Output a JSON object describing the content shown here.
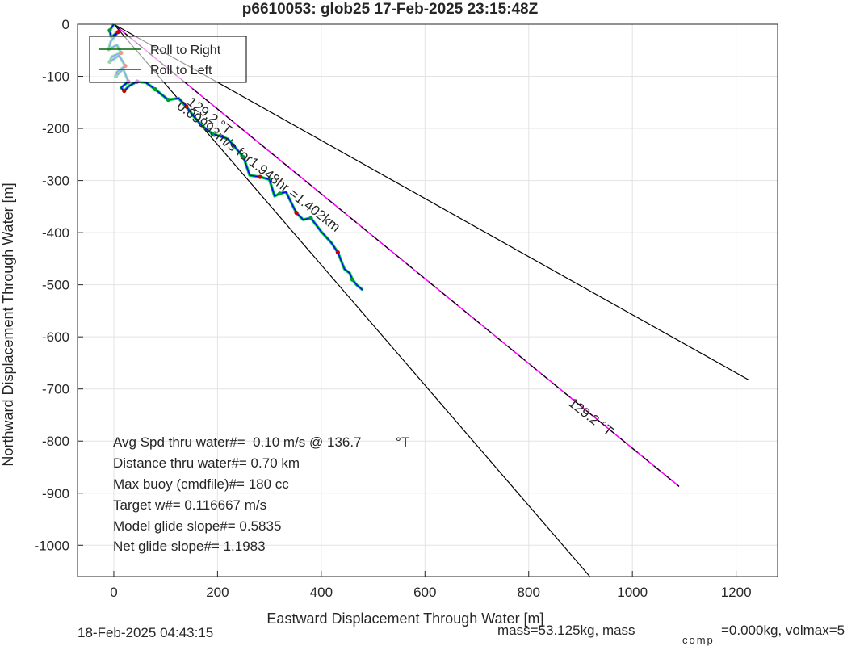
{
  "chart_data": {
    "type": "line",
    "title": "p6610053: glob25 17-Feb-2025 23:15:48Z",
    "xlabel": "Eastward Displacement Through Water [m]",
    "ylabel": "Northward Displacement Through Water [m]",
    "xlim": [
      -70,
      1280
    ],
    "ylim": [
      -1060,
      0
    ],
    "x_ticks": [
      0,
      200,
      400,
      600,
      800,
      1000,
      1200
    ],
    "y_ticks": [
      0,
      -100,
      -200,
      -300,
      -400,
      -500,
      -600,
      -700,
      -800,
      -900,
      -1000
    ],
    "grid": true,
    "legend": {
      "placement": "top-left",
      "entries": [
        {
          "label": "Roll to Right",
          "color": "#006600"
        },
        {
          "label": "Roll to Left",
          "color": "#cc0000"
        }
      ]
    },
    "colors": {
      "track": "#0000ff",
      "track_outline": "#00cc44",
      "roll_right": "#009933",
      "roll_left": "#cc0000",
      "dive_point": "#7a00b8",
      "projection": "#ff00ff",
      "reference": "#000000"
    },
    "reference_lines": [
      {
        "name": "upper-bound-line",
        "x": [
          0,
          1225
        ],
        "y": [
          0,
          -683
        ],
        "style": "solid",
        "color": "#000000"
      },
      {
        "name": "lower-bound-line",
        "x": [
          0,
          918
        ],
        "y": [
          0,
          -1060
        ],
        "style": "solid",
        "color": "#000000"
      },
      {
        "name": "projection-line",
        "x": [
          0,
          1090
        ],
        "y": [
          0,
          -887
        ],
        "style": "dashed",
        "color": "#000000",
        "overlay_color": "#ff00ff"
      }
    ],
    "track": {
      "x": [
        0,
        -8,
        -5,
        8,
        -6,
        -10,
        6,
        14,
        -4,
        -8,
        10,
        22,
        6,
        4,
        18,
        28,
        14,
        20,
        30,
        45,
        62,
        80,
        96,
        105,
        125,
        140,
        155,
        170,
        190,
        220,
        250,
        262,
        282,
        300,
        310,
        320,
        332,
        340,
        352,
        365,
        380,
        400,
        420,
        432,
        445,
        455,
        460,
        468,
        480
      ],
      "y": [
        0,
        -12,
        -25,
        -15,
        -33,
        -48,
        -40,
        -55,
        -62,
        -72,
        -60,
        -80,
        -92,
        -100,
        -86,
        -110,
        -122,
        -128,
        -118,
        -110,
        -112,
        -125,
        -138,
        -145,
        -142,
        -158,
        -178,
        -195,
        -210,
        -220,
        -255,
        -290,
        -293,
        -298,
        -330,
        -325,
        -322,
        -338,
        -362,
        -375,
        -372,
        -398,
        -420,
        -438,
        -470,
        -478,
        -490,
        -500,
        -510
      ]
    },
    "roll_points": {
      "x": [
        -8,
        8,
        -10,
        14,
        -8,
        22,
        4,
        28,
        20,
        45,
        80,
        105,
        140,
        190,
        250,
        282,
        320,
        352,
        380,
        432,
        460
      ],
      "y": [
        -12,
        -15,
        -48,
        -55,
        -72,
        -80,
        -100,
        -110,
        -128,
        -110,
        -125,
        -145,
        -158,
        -210,
        -255,
        -293,
        -325,
        -362,
        -372,
        -438,
        -490
      ],
      "colors": [
        "#009933",
        "#cc0000",
        "#009933",
        "#cc0000",
        "#009933",
        "#cc0000",
        "#009933",
        "#7a00b8",
        "#cc0000",
        "#7a00b8",
        "#009933",
        "#009933",
        "#cc0000",
        "#009933",
        "#009933",
        "#cc0000",
        "#009933",
        "#cc0000",
        "#009933",
        "#cc0000",
        "#009933"
      ]
    },
    "annotations": [
      {
        "name": "speed-annotation",
        "text": "0.09993m/s for1.948hr =1.402km",
        "x": 120,
        "y": -160,
        "angle": 38
      },
      {
        "name": "heading-annotation-upper",
        "text": "129.2  °T",
        "x": 140,
        "y": -152,
        "angle": 38
      },
      {
        "name": "heading-annotation-lower",
        "text": "129.2  °T",
        "x": 875,
        "y": -730,
        "angle": 38
      }
    ],
    "stats": [
      "Avg Spd thru water#=  0.10 m/s @ 136.7         °T",
      "Distance thru water#=  0.70 km",
      "Max buoy (cmdfile)#= 180 cc",
      "Target w#= 0.116667 m/s",
      "Model glide slope#= 0.5835",
      "Net glide slope#= 1.1983"
    ]
  },
  "footer": {
    "timestamp": "18-Feb-2025 04:43:15",
    "mass_text": "mass=53.125kg, mass",
    "mass_subscript": "comp",
    "mass_tail": "=0.000kg, volmax=5"
  }
}
